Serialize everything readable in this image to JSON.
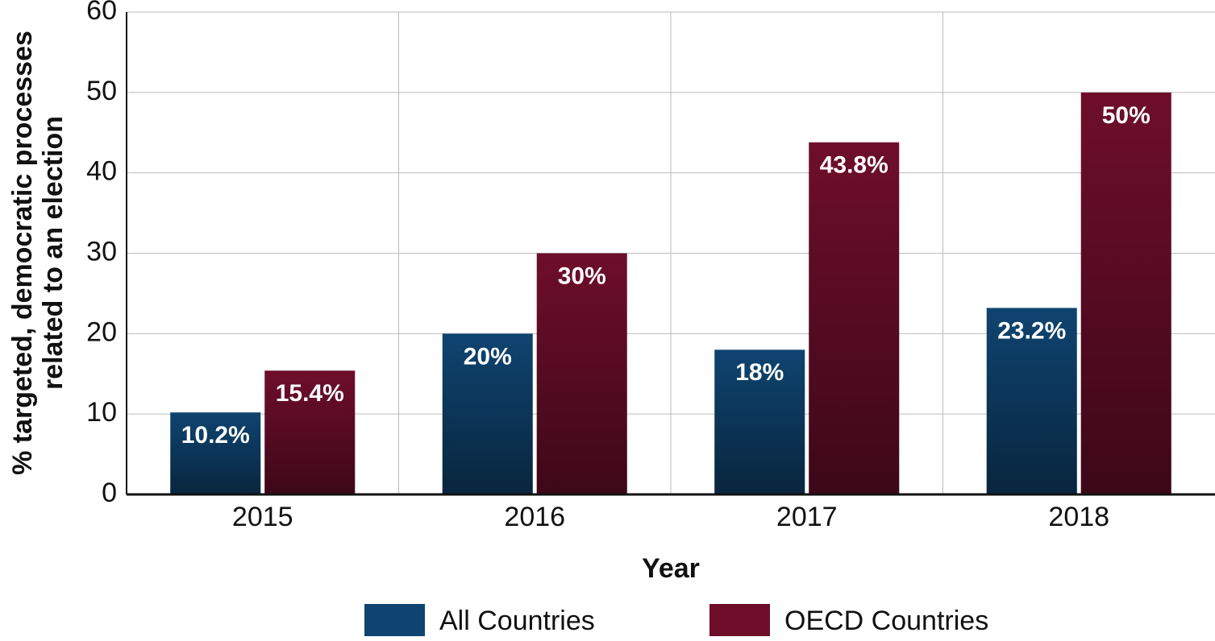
{
  "chart_data": {
    "type": "bar",
    "x_label": "Year",
    "y_label": [
      "% targeted, democratic processes",
      "related to an election"
    ],
    "categories": [
      "2015",
      "2016",
      "2017",
      "2018"
    ],
    "series": [
      {
        "name": "All Countries",
        "color": "#0f4470",
        "values": [
          10.2,
          20,
          18,
          23.2
        ],
        "value_labels": [
          "10.2%",
          "20%",
          "18%",
          "23.2%"
        ]
      },
      {
        "name": "OECD Countries",
        "color": "#6e0e2b",
        "values": [
          15.4,
          30,
          43.8,
          50
        ],
        "value_labels": [
          "15.4%",
          "30%",
          "43.8%",
          "50%"
        ]
      }
    ],
    "ylim": [
      0,
      60
    ],
    "yticks": [
      0,
      10,
      20,
      30,
      40,
      50,
      60
    ],
    "grid": true,
    "legend": "bottom"
  }
}
